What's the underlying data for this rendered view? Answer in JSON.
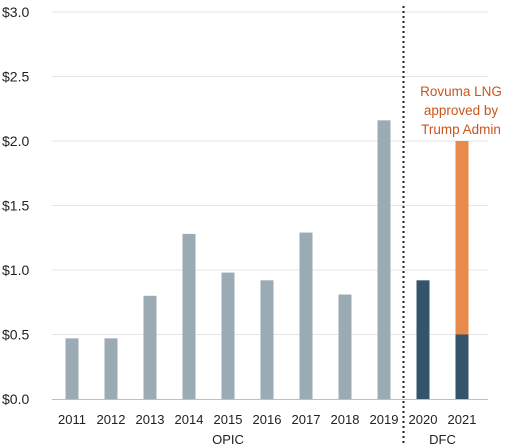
{
  "colors": {
    "opic_bar": "#9aabb4",
    "dfc_bar": "#33546b",
    "rovuma_bar": "#e88a4a",
    "annotation_text": "#c8561b",
    "gridline": "#e6e6e6",
    "divider": "#222222"
  },
  "chart_data": {
    "type": "bar",
    "stacked": true,
    "categories": [
      "2011",
      "2012",
      "2013",
      "2014",
      "2015",
      "2016",
      "2017",
      "2018",
      "2019",
      "2020",
      "2021"
    ],
    "series": [
      {
        "key": "opic",
        "values": [
          0.47,
          0.47,
          0.8,
          1.28,
          0.98,
          0.92,
          1.29,
          0.81,
          2.16,
          null,
          null
        ]
      },
      {
        "key": "dfc",
        "values": [
          null,
          null,
          null,
          null,
          null,
          null,
          null,
          null,
          null,
          0.92,
          0.5
        ]
      },
      {
        "key": "rovuma",
        "values": [
          null,
          null,
          null,
          null,
          null,
          null,
          null,
          null,
          null,
          null,
          1.5
        ]
      }
    ],
    "ylim": [
      0,
      3.0
    ],
    "yticks": [
      "$0.0",
      "$0.5",
      "$1.0",
      "$1.5",
      "$2.0",
      "$2.5",
      "$3.0"
    ],
    "grid": true,
    "groups": [
      {
        "label": "OPIC",
        "from": "2011",
        "to": "2019"
      },
      {
        "label": "DFC",
        "from": "2020",
        "to": "2021"
      }
    ],
    "annotation": {
      "lines": [
        "Rovuma LNG",
        "approved by",
        "Trump Admin"
      ],
      "target": "2021"
    }
  }
}
